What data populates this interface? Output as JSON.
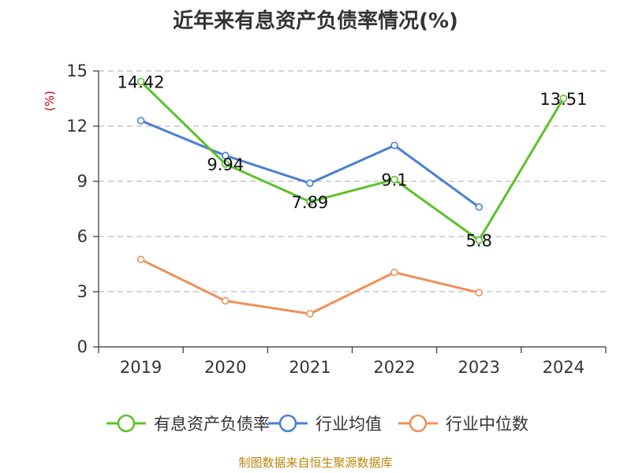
{
  "chart_data": {
    "type": "line",
    "title": "近年来有息资产负债率情况(%)",
    "ylabel": "(%)",
    "categories": [
      "2019",
      "2020",
      "2021",
      "2022",
      "2023",
      "2024"
    ],
    "ylim": [
      0,
      15
    ],
    "yticks": [
      0,
      3,
      6,
      9,
      12,
      15
    ],
    "grid": true,
    "legend_position": "bottom",
    "series": [
      {
        "name": "有息资产负债率",
        "color": "#5cc12a",
        "values": [
          14.42,
          9.94,
          7.89,
          9.1,
          5.8,
          13.51
        ],
        "labels": [
          "14.42",
          "9.94",
          "7.89",
          "9.1",
          "5.8",
          "13.51"
        ]
      },
      {
        "name": "行业均值",
        "color": "#4a7fd6",
        "values": [
          12.3,
          10.4,
          8.9,
          10.95,
          7.6,
          null
        ]
      },
      {
        "name": "行业中位数",
        "color": "#f0905a",
        "values": [
          4.75,
          2.5,
          1.8,
          4.05,
          2.95,
          null
        ]
      }
    ]
  },
  "source": "制图数据来自恒生聚源数据库"
}
